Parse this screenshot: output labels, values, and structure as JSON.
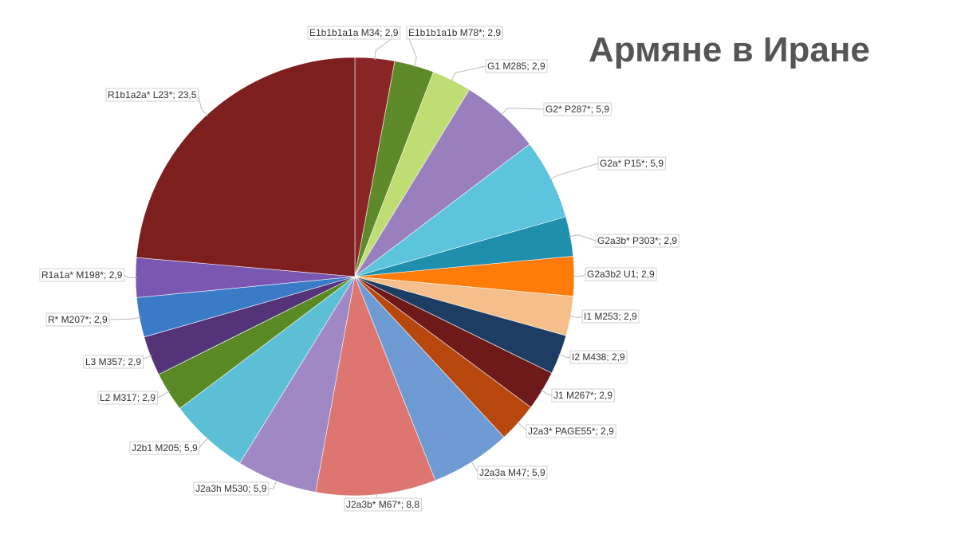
{
  "chart_data": {
    "type": "pie",
    "title": "Армяне в Иране",
    "start_angle_deg": 0,
    "direction": "clockwise",
    "slices": [
      {
        "label": "E1b1b1a1a M34; 2,9",
        "value": 2.9,
        "color": "#8b2626"
      },
      {
        "label": "E1b1b1a1b M78*; 2,9",
        "value": 2.9,
        "color": "#5f8a2a"
      },
      {
        "label": "G1 M285; 2,9",
        "value": 2.9,
        "color": "#bedd73"
      },
      {
        "label": "G2* P287*; 5,9",
        "value": 5.9,
        "color": "#9a7fbf"
      },
      {
        "label": "G2a* P15*; 5,9",
        "value": 5.9,
        "color": "#5cc4dd"
      },
      {
        "label": "G2a3b* P303*; 2,9",
        "value": 2.9,
        "color": "#1f8fae"
      },
      {
        "label": "G2a3b2 U1; 2,9",
        "value": 2.9,
        "color": "#ff7c0a"
      },
      {
        "label": "I1 M253; 2,9",
        "value": 2.9,
        "color": "#f6be8a"
      },
      {
        "label": "I2 M438; 2,9",
        "value": 2.9,
        "color": "#1d3d63"
      },
      {
        "label": "J1 M267*; 2,9",
        "value": 2.9,
        "color": "#6e1a1a"
      },
      {
        "label": "J2a3* PAGE55*; 2,9",
        "value": 2.9,
        "color": "#b8470e"
      },
      {
        "label": "J2a3a M47; 5,9",
        "value": 5.9,
        "color": "#6f9bd4"
      },
      {
        "label": "J2a3b* M67*; 8,8",
        "value": 8.8,
        "color": "#dd7570"
      },
      {
        "label": "J2a3h M530; 5,9",
        "value": 5.9,
        "color": "#9f88c3"
      },
      {
        "label": "J2b1 M205; 5,9",
        "value": 5.9,
        "color": "#5dbfd6"
      },
      {
        "label": "L2 M317; 2,9",
        "value": 2.9,
        "color": "#5a8a26"
      },
      {
        "label": "L3 M357; 2,9",
        "value": 2.9,
        "color": "#553377"
      },
      {
        "label": "R* M207*; 2,9",
        "value": 2.9,
        "color": "#3a7bc8"
      },
      {
        "label": "R1a1a* M198*; 2,9",
        "value": 2.9,
        "color": "#7a57b0"
      },
      {
        "label": "R1b1a2a* L23*; 23,5",
        "value": 23.5,
        "color": "#7d1f1f"
      }
    ]
  }
}
